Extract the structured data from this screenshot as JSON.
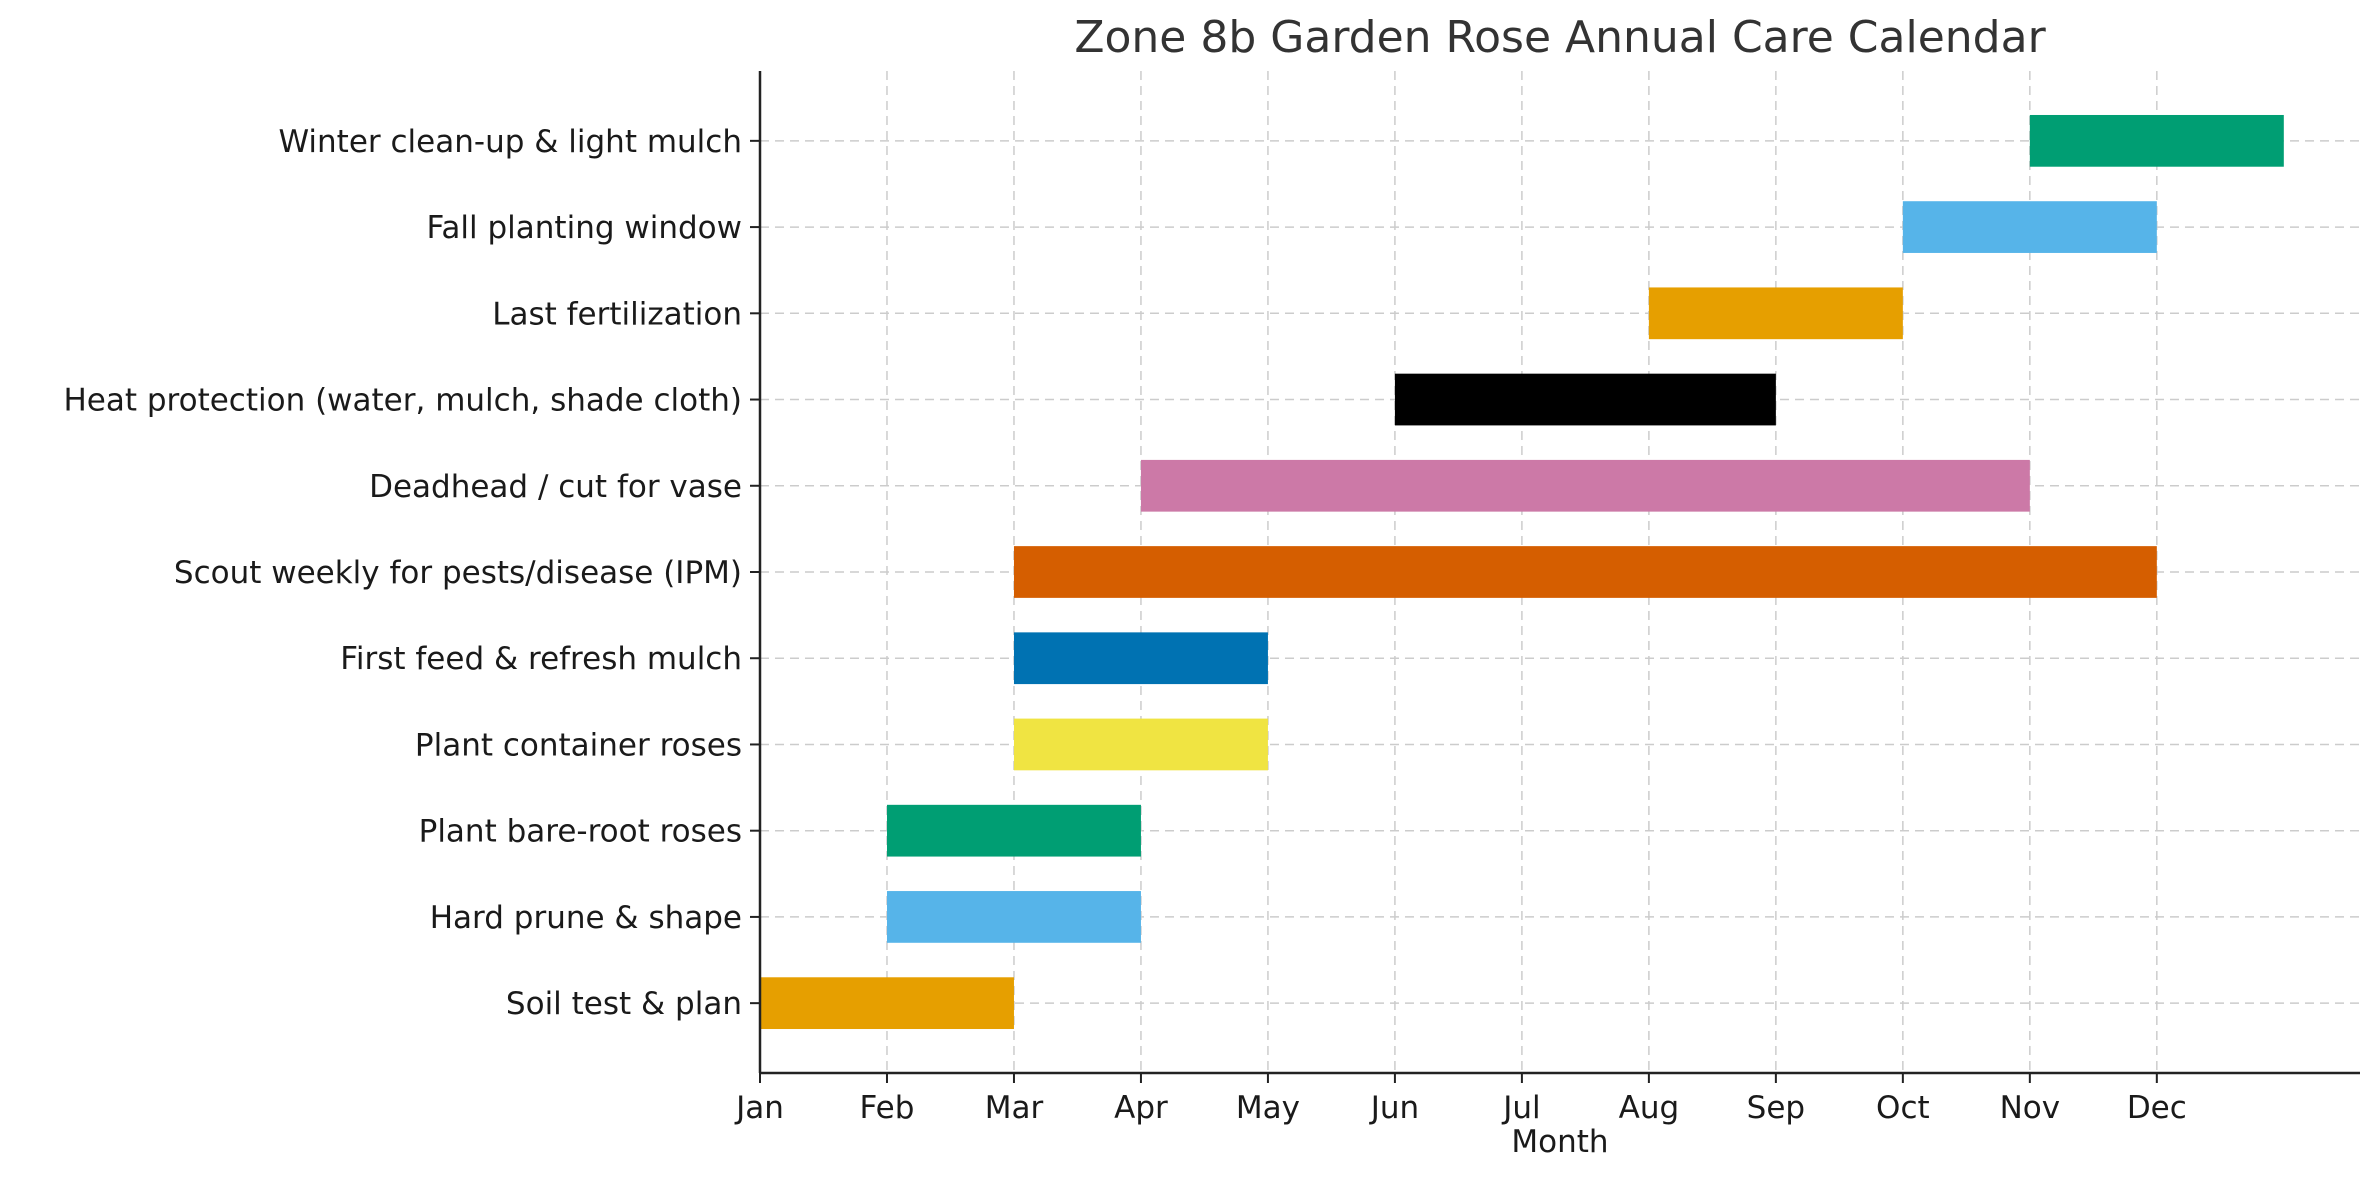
{
  "chart_data": {
    "type": "gantt",
    "title": "Zone 8b Garden Rose Annual Care Calendar",
    "xlabel": "Month",
    "ylabel": "",
    "xticks": [
      "Jan",
      "Feb",
      "Mar",
      "Apr",
      "May",
      "Jun",
      "Jul",
      "Aug",
      "Sep",
      "Oct",
      "Nov",
      "Dec"
    ],
    "xlim": [
      0,
      12.6
    ],
    "grid": true,
    "tasks": [
      {
        "name": "Soil test & plan",
        "start": 0,
        "end": 2,
        "color": "#E69F00"
      },
      {
        "name": "Hard prune & shape",
        "start": 1,
        "end": 3,
        "color": "#56B4E9"
      },
      {
        "name": "Plant bare-root roses",
        "start": 1,
        "end": 3,
        "color": "#009E73"
      },
      {
        "name": "Plant container roses",
        "start": 2,
        "end": 4,
        "color": "#F0E442"
      },
      {
        "name": "First feed & refresh mulch",
        "start": 2,
        "end": 4,
        "color": "#0072B2"
      },
      {
        "name": "Scout weekly for pests/disease (IPM)",
        "start": 2,
        "end": 11,
        "color": "#D55E00"
      },
      {
        "name": "Deadhead / cut for vase",
        "start": 3,
        "end": 10,
        "color": "#CC79A7"
      },
      {
        "name": "Heat protection (water, mulch, shade cloth)",
        "start": 5,
        "end": 8,
        "color": "#000000"
      },
      {
        "name": "Last fertilization",
        "start": 7,
        "end": 9,
        "color": "#E69F00"
      },
      {
        "name": "Fall planting window",
        "start": 9,
        "end": 11,
        "color": "#56B4E9"
      },
      {
        "name": "Winter clean-up & light mulch",
        "start": 10,
        "end": 12,
        "color": "#009E73"
      }
    ]
  }
}
